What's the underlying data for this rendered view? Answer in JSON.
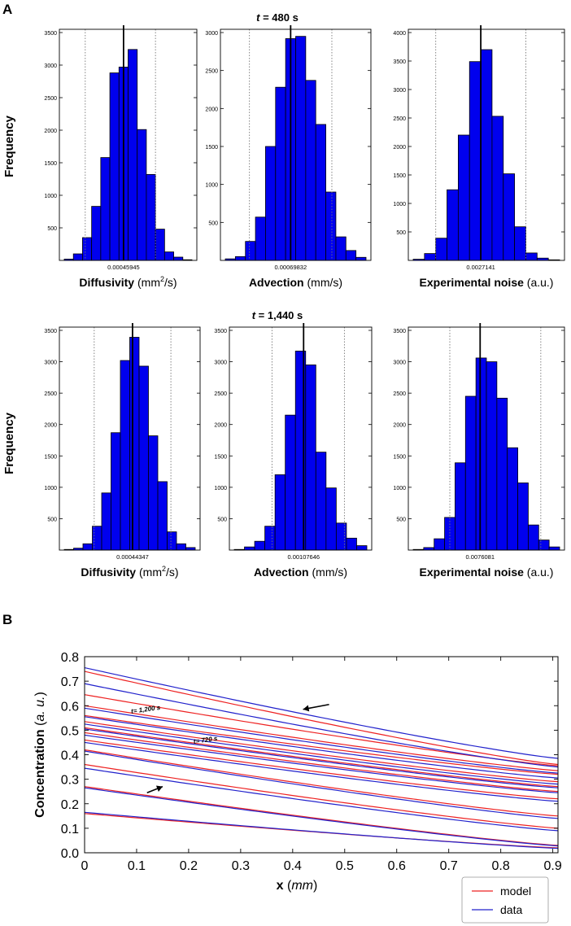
{
  "panel_labels": {
    "a": "A",
    "b": "B"
  },
  "colors": {
    "bar": "#0000ee",
    "mean": "#000000",
    "model": "#ee2222",
    "data": "#2222cc"
  },
  "panel_a": {
    "frequency_label": "Frequency",
    "rows": [
      {
        "title_var": "t",
        "title_rest": " = 480 s"
      },
      {
        "title_var": "t",
        "title_rest": " = 1,440 s"
      }
    ]
  },
  "chart_data": [
    {
      "type": "bar",
      "id": "h480-diffusivity",
      "row": 0,
      "xlabel_bold": "Diffusivity",
      "xlabel_unit_pre": " (mm",
      "xlabel_sup": "2",
      "xlabel_unit_post": "/s)",
      "mean_label": "0.00045945",
      "ylim": [
        0,
        3500
      ],
      "yticks": [
        500,
        1000,
        1500,
        2000,
        2500,
        3000,
        3500
      ],
      "values": [
        20,
        100,
        350,
        830,
        1580,
        2880,
        2970,
        3240,
        2010,
        1320,
        480,
        130,
        50,
        10
      ],
      "mean_bin": 6.5,
      "ci_bins": [
        2.3,
        10.0
      ]
    },
    {
      "type": "bar",
      "id": "h480-advection",
      "row": 0,
      "xlabel_bold": "Advection",
      "xlabel_unit_pre": " (mm/s)",
      "xlabel_sup": "",
      "xlabel_unit_post": "",
      "mean_label": "0.00069832",
      "ylim": [
        0,
        3000
      ],
      "yticks": [
        500,
        1000,
        1500,
        2000,
        2500,
        3000
      ],
      "values": [
        20,
        50,
        250,
        570,
        1500,
        2280,
        2920,
        2950,
        2370,
        1790,
        900,
        310,
        130,
        40
      ],
      "mean_bin": 6.5,
      "ci_bins": [
        2.4,
        10.6
      ]
    },
    {
      "type": "bar",
      "id": "h480-noise",
      "row": 0,
      "xlabel_bold": "Experimental noise",
      "xlabel_unit_pre": " (a.u.)",
      "xlabel_sup": "",
      "xlabel_unit_post": "",
      "mean_label": "0.0027141",
      "ylim": [
        0,
        4000
      ],
      "yticks": [
        500,
        1000,
        1500,
        2000,
        2500,
        3000,
        3500,
        4000
      ],
      "values": [
        20,
        120,
        390,
        1240,
        2200,
        3490,
        3700,
        2530,
        1520,
        590,
        130,
        40,
        10
      ],
      "mean_bin": 6.0,
      "ci_bins": [
        2.0,
        10.0
      ]
    },
    {
      "type": "bar",
      "id": "h1440-diffusivity",
      "row": 1,
      "xlabel_bold": "Diffusivity",
      "xlabel_unit_pre": " (mm",
      "xlabel_sup": "2",
      "xlabel_unit_post": "/s)",
      "mean_label": "0.00044347",
      "ylim": [
        0,
        3500
      ],
      "yticks": [
        500,
        1000,
        1500,
        2000,
        2500,
        3000,
        3500
      ],
      "values": [
        10,
        30,
        100,
        380,
        910,
        1870,
        3020,
        3390,
        2930,
        1820,
        1090,
        290,
        100,
        40
      ],
      "mean_bin": 7.3,
      "ci_bins": [
        3.2,
        11.4
      ]
    },
    {
      "type": "bar",
      "id": "h1440-advection",
      "row": 1,
      "xlabel_bold": "Advection",
      "xlabel_unit_pre": " (mm/s)",
      "xlabel_sup": "",
      "xlabel_unit_post": "",
      "mean_label": "0.00107646",
      "ylim": [
        0,
        3500
      ],
      "yticks": [
        500,
        1000,
        1500,
        2000,
        2500,
        3000,
        3500
      ],
      "values": [
        10,
        50,
        140,
        380,
        1200,
        2150,
        3170,
        2950,
        1560,
        990,
        430,
        190,
        70
      ],
      "mean_bin": 6.8,
      "ci_bins": [
        3.7,
        10.8
      ]
    },
    {
      "type": "bar",
      "id": "h1440-noise",
      "row": 1,
      "xlabel_bold": "Experimental noise",
      "xlabel_unit_pre": " (a.u.)",
      "xlabel_sup": "",
      "xlabel_unit_post": "",
      "mean_label": "0.0076081",
      "ylim": [
        0,
        3500
      ],
      "yticks": [
        500,
        1000,
        1500,
        2000,
        2500,
        3000,
        3500
      ],
      "values": [
        10,
        40,
        180,
        520,
        1390,
        2450,
        3060,
        3000,
        2420,
        1630,
        1070,
        400,
        160,
        50
      ],
      "mean_bin": 6.4,
      "ci_bins": [
        3.5,
        12.2
      ]
    },
    {
      "type": "line",
      "id": "concentration-profiles",
      "xlabel_bold": "x",
      "xlabel_unit": "mm",
      "ylabel_bold": "Concentration",
      "ylabel_unit": "a. u.",
      "xlim": [
        0,
        0.91
      ],
      "ylim": [
        0,
        0.8
      ],
      "xticks": [
        0,
        0.1,
        0.2,
        0.3,
        0.4,
        0.5,
        0.6,
        0.7,
        0.8,
        0.9
      ],
      "yticks": [
        0.0,
        0.1,
        0.2,
        0.3,
        0.4,
        0.5,
        0.6,
        0.7,
        0.8
      ],
      "annotations": [
        {
          "text": "t= 1,200 s",
          "x": 0.09,
          "y": 0.568
        },
        {
          "text": "t= 720 s",
          "x": 0.21,
          "y": 0.445
        }
      ],
      "arrows": [
        {
          "x": 0.42,
          "y": 0.585,
          "from_x": 0.47,
          "from_y": 0.605
        },
        {
          "x": 0.15,
          "y": 0.27,
          "from_x": 0.12,
          "from_y": 0.245
        }
      ],
      "legend": [
        "model",
        "data"
      ],
      "series": [
        {
          "name": "model",
          "x": [
            0,
            0.91
          ],
          "values": [
            0.16,
            0.02
          ]
        },
        {
          "name": "data",
          "x": [
            0,
            0.91
          ],
          "values": [
            0.165,
            0.018
          ]
        },
        {
          "name": "model",
          "x": [
            0,
            0.91
          ],
          "values": [
            0.27,
            0.03
          ]
        },
        {
          "name": "data",
          "x": [
            0,
            0.91
          ],
          "values": [
            0.265,
            0.028
          ]
        },
        {
          "name": "model",
          "x": [
            0,
            0.91
          ],
          "values": [
            0.36,
            0.1
          ]
        },
        {
          "name": "data",
          "x": [
            0,
            0.91
          ],
          "values": [
            0.345,
            0.09
          ]
        },
        {
          "name": "model",
          "x": [
            0,
            0.91
          ],
          "values": [
            0.42,
            0.15
          ]
        },
        {
          "name": "data",
          "x": [
            0,
            0.91
          ],
          "values": [
            0.415,
            0.14
          ]
        },
        {
          "name": "model",
          "x": [
            0,
            0.91
          ],
          "values": [
            0.46,
            0.22
          ]
        },
        {
          "name": "data",
          "x": [
            0,
            0.91
          ],
          "values": [
            0.45,
            0.21
          ]
        },
        {
          "name": "model",
          "x": [
            0,
            0.91
          ],
          "values": [
            0.49,
            0.25
          ]
        },
        {
          "name": "data",
          "x": [
            0,
            0.91
          ],
          "values": [
            0.48,
            0.245
          ]
        },
        {
          "name": "model",
          "x": [
            0,
            0.91
          ],
          "values": [
            0.51,
            0.27
          ]
        },
        {
          "name": "data",
          "x": [
            0,
            0.91
          ],
          "values": [
            0.505,
            0.265
          ]
        },
        {
          "name": "model",
          "x": [
            0,
            0.91
          ],
          "values": [
            0.535,
            0.29
          ]
        },
        {
          "name": "data",
          "x": [
            0,
            0.91
          ],
          "values": [
            0.525,
            0.28
          ]
        },
        {
          "name": "model",
          "x": [
            0,
            0.91
          ],
          "values": [
            0.56,
            0.32
          ]
        },
        {
          "name": "data",
          "x": [
            0,
            0.91
          ],
          "values": [
            0.555,
            0.305
          ]
        },
        {
          "name": "model",
          "x": [
            0,
            0.91
          ],
          "values": [
            0.6,
            0.335
          ]
        },
        {
          "name": "data",
          "x": [
            0,
            0.91
          ],
          "values": [
            0.59,
            0.325
          ]
        },
        {
          "name": "model",
          "x": [
            0,
            0.91
          ],
          "values": [
            0.645,
            0.355
          ]
        },
        {
          "name": "data",
          "x": [
            0,
            0.91
          ],
          "values": [
            0.69,
            0.35
          ]
        },
        {
          "name": "model",
          "x": [
            0,
            0.91
          ],
          "values": [
            0.74,
            0.36
          ]
        },
        {
          "name": "data",
          "x": [
            0,
            0.91
          ],
          "values": [
            0.755,
            0.385
          ]
        }
      ]
    }
  ]
}
